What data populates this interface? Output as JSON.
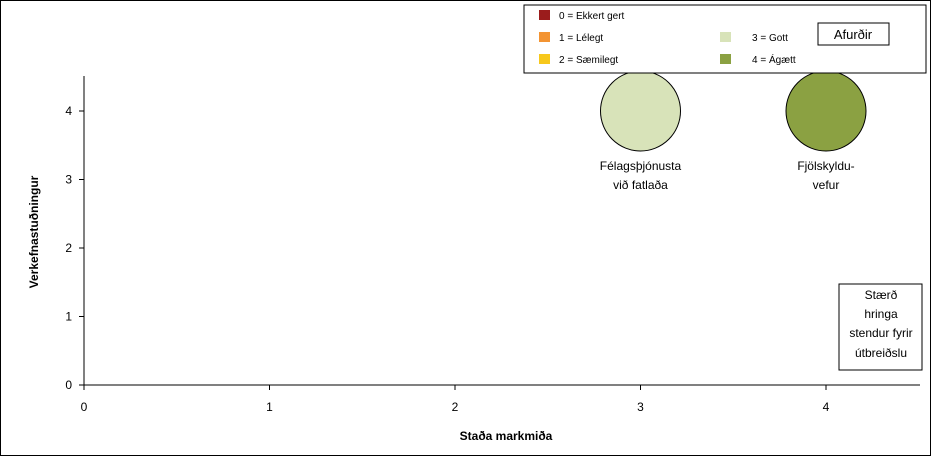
{
  "chart_data": {
    "type": "bubble",
    "xlabel": "Staða markmiða",
    "ylabel": "Verkefnastuðningur",
    "xlim": [
      0,
      4.5
    ],
    "ylim": [
      0,
      4.5
    ],
    "xticks": [
      0,
      1,
      2,
      3,
      4
    ],
    "yticks": [
      0,
      1,
      2,
      3,
      4
    ],
    "grid": false,
    "points": [
      {
        "label_lines": [
          "Félagsþjónusta",
          "við fatlaða"
        ],
        "x": 3,
        "y": 4,
        "rating": 3
      },
      {
        "label_lines": [
          "Fjölskyldu-",
          "vefur"
        ],
        "x": 4,
        "y": 4,
        "rating": 4
      }
    ],
    "legend": {
      "placement": "top-right",
      "items": [
        {
          "text": "0 = Ekkert gert",
          "color": "#9b1c1c"
        },
        {
          "text": "1 = Lélegt",
          "color": "#f39432"
        },
        {
          "text": "2 = Sæmilegt",
          "color": "#f7c81c"
        },
        {
          "text": "3 = Gott",
          "color": "#d8e3b9"
        },
        {
          "text": "4 = Ágætt",
          "color": "#8ba142"
        }
      ],
      "title": "Afurðir"
    },
    "size_note_lines": [
      "Stærð",
      "hringa",
      "stendur fyrir",
      "útbreiðslu"
    ]
  }
}
